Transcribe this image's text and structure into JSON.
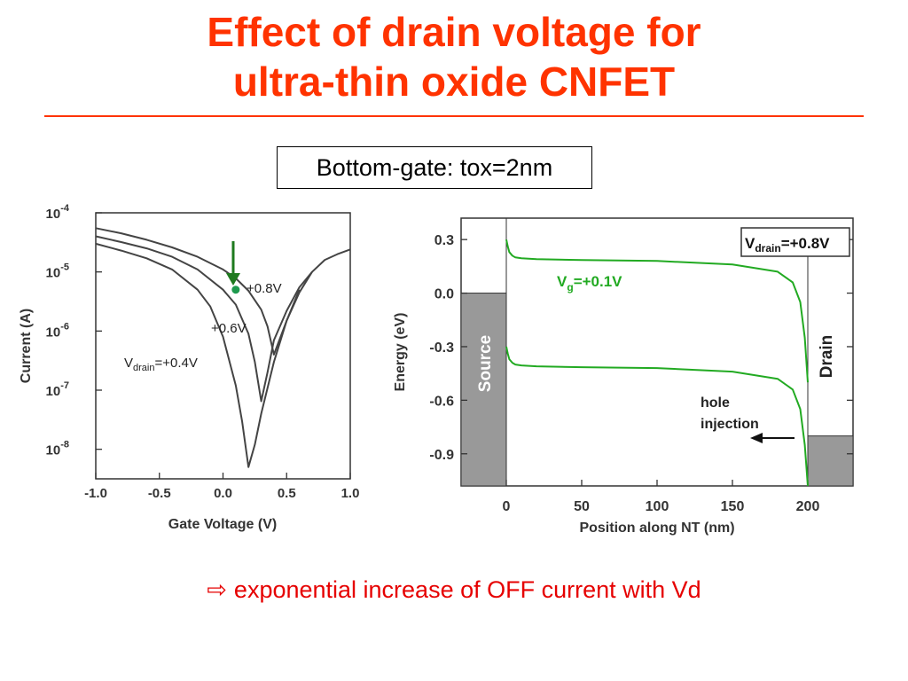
{
  "slide": {
    "title_line1": "Effect of drain voltage for",
    "title_line2": "ultra-thin oxide CNFET",
    "callout": "Bottom-gate: tox=2nm",
    "conclusion_arrow": "⇨",
    "conclusion": "exponential increase of OFF current with Vd",
    "colors": {
      "title": "#ff3300",
      "conclusion": "#e60000",
      "band": "#22aa22",
      "contact": "#999999"
    }
  },
  "chart_data": [
    {
      "type": "line",
      "xlabel": "Gate Voltage (V)",
      "ylabel": "Current (A)",
      "xlim": [
        -1.0,
        1.0
      ],
      "ylim_log10": [
        -8.5,
        -4
      ],
      "y_scale": "log",
      "x_ticks": [
        "-1.0",
        "-0.5",
        "0.0",
        "0.5",
        "1.0"
      ],
      "y_ticks": [
        {
          "base": "10",
          "exp": "-4"
        },
        {
          "base": "10",
          "exp": "-5"
        },
        {
          "base": "10",
          "exp": "-6"
        },
        {
          "base": "10",
          "exp": "-7"
        },
        {
          "base": "10",
          "exp": "-8"
        }
      ],
      "grid": false,
      "series": [
        {
          "name": "+0.8V",
          "x": [
            -1.0,
            -0.8,
            -0.6,
            -0.4,
            -0.2,
            0.0,
            0.1,
            0.2,
            0.3,
            0.35,
            0.4,
            0.5,
            0.6,
            0.7,
            0.8,
            0.9,
            1.0
          ],
          "y": [
            5.5e-05,
            4.5e-05,
            3.5e-05,
            2.6e-05,
            1.8e-05,
            1.1e-05,
            7.8e-06,
            4.8e-06,
            2.3e-06,
            1.2e-06,
            4e-07,
            1.5e-06,
            4.5e-06,
            1e-05,
            1.6e-05,
            2e-05,
            2.4e-05
          ]
        },
        {
          "name": "+0.6V",
          "x": [
            -1.0,
            -0.8,
            -0.6,
            -0.4,
            -0.2,
            0.0,
            0.1,
            0.2,
            0.25,
            0.3,
            0.35,
            0.4,
            0.5,
            0.6,
            0.7
          ],
          "y": [
            4e-05,
            3.2e-05,
            2.5e-05,
            1.8e-05,
            1.1e-05,
            5e-06,
            2.8e-06,
            9e-07,
            3e-07,
            6.5e-08,
            2e-07,
            7e-07,
            2.2e-06,
            5.5e-06,
            1e-05
          ]
        },
        {
          "name": "+0.4V",
          "x": [
            -1.0,
            -0.8,
            -0.6,
            -0.4,
            -0.2,
            -0.1,
            0.0,
            0.1,
            0.15,
            0.2,
            0.25,
            0.3,
            0.4,
            0.5,
            0.6
          ],
          "y": [
            3e-05,
            2.3e-05,
            1.7e-05,
            1.1e-05,
            5e-06,
            2.6e-06,
            8e-07,
            1.2e-07,
            3e-08,
            5e-09,
            1.2e-08,
            4e-08,
            3e-07,
            1.5e-06,
            5e-06
          ]
        }
      ],
      "marker": {
        "x": 0.1,
        "y": 5e-06
      },
      "annotations": [
        {
          "text_main": "+0.8V",
          "for": "+0.8V"
        },
        {
          "text_main": "+0.6V",
          "for": "+0.6V"
        },
        {
          "text_main": "V",
          "text_sub": "drain",
          "text_tail": "=+0.4V",
          "for": "+0.4V"
        }
      ]
    },
    {
      "type": "line",
      "xlabel": "Position along NT (nm)",
      "ylabel": "Energy (eV)",
      "xlim": [
        -30,
        230
      ],
      "ylim": [
        -1.08,
        0.42
      ],
      "x_ticks": [
        0,
        50,
        100,
        150,
        200
      ],
      "y_ticks": [
        "0.3",
        "0.0",
        "-0.3",
        "-0.6",
        "-0.9"
      ],
      "y_tick_values": [
        0.3,
        0.0,
        -0.3,
        -0.6,
        -0.9
      ],
      "grid": false,
      "series": [
        {
          "name": "conduction band",
          "x": [
            0,
            1,
            2,
            4,
            6,
            10,
            20,
            50,
            100,
            150,
            180,
            190,
            195,
            198,
            200
          ],
          "y": [
            0.3,
            0.26,
            0.23,
            0.21,
            0.2,
            0.195,
            0.19,
            0.185,
            0.18,
            0.16,
            0.12,
            0.06,
            -0.05,
            -0.25,
            -0.5
          ]
        },
        {
          "name": "valence band",
          "x": [
            0,
            1,
            2,
            4,
            6,
            10,
            20,
            50,
            100,
            150,
            180,
            190,
            195,
            198,
            200
          ],
          "y": [
            -0.3,
            -0.34,
            -0.37,
            -0.39,
            -0.4,
            -0.405,
            -0.41,
            -0.415,
            -0.42,
            -0.44,
            -0.48,
            -0.54,
            -0.65,
            -0.85,
            -1.08
          ]
        }
      ],
      "contacts": [
        {
          "label": "Source",
          "x_range": [
            -30,
            0
          ],
          "top_energy": 0.0
        },
        {
          "label": "Drain",
          "x_range": [
            200,
            230
          ],
          "top_energy": -0.8
        }
      ],
      "annotations": [
        {
          "text_main": "V",
          "text_sub": "drain",
          "text_tail": "=+0.8V",
          "boxed": true
        },
        {
          "text_main": "V",
          "text_sub": "g",
          "text_tail": "=+0.1V"
        },
        {
          "text_line1": "hole",
          "text_line2": "injection"
        }
      ]
    }
  ]
}
